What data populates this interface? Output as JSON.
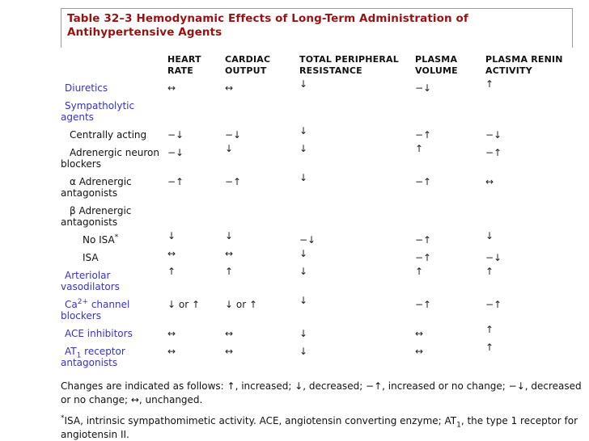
{
  "title": "Table 32–3 Hemodynamic Effects of Long-Term Administration of Antihypertensive Agents",
  "colors": {
    "title": "#991111",
    "link": "#3434bb",
    "border": "#9a9a9a"
  },
  "table": {
    "columns": [
      "HEART RATE",
      "CARDIAC OUTPUT",
      "TOTAL PERIPHERAL RESISTANCE",
      "PLASMA VOLUME",
      "PLASMA RENIN ACTIVITY"
    ],
    "rows": [
      {
        "label": "Diuretics",
        "link": true,
        "indent": 0,
        "cells": [
          "↔",
          "↔",
          "↓",
          "−↓",
          "↑"
        ],
        "raised": [
          false,
          false,
          true,
          false,
          true
        ]
      },
      {
        "label": "Sympatholytic agents",
        "link": true,
        "indent": 0,
        "cells": [
          "",
          "",
          "",
          "",
          ""
        ],
        "raised": [
          false,
          false,
          false,
          false,
          false
        ]
      },
      {
        "label": "Centrally acting",
        "link": false,
        "indent": 1,
        "cells": [
          "−↓",
          "−↓",
          "↓",
          "−↑",
          "−↓"
        ],
        "raised": [
          false,
          false,
          true,
          false,
          false
        ]
      },
      {
        "label": "Adrenergic neuron blockers",
        "link": false,
        "indent": 1,
        "cells": [
          "−↓",
          "↓",
          "↓",
          "↑",
          "−↑"
        ],
        "raised": [
          false,
          true,
          true,
          true,
          false
        ]
      },
      {
        "label": "α Adrenergic antagonists",
        "link": false,
        "indent": 1,
        "cells": [
          "−↑",
          "−↑",
          "↓",
          "−↑",
          "↔"
        ],
        "raised": [
          false,
          false,
          true,
          false,
          false
        ]
      },
      {
        "label": "β Adrenergic antagonists",
        "link": false,
        "indent": 1,
        "cells": [
          "",
          "",
          "",
          "",
          ""
        ],
        "raised": [
          false,
          false,
          false,
          false,
          false
        ]
      },
      {
        "label": "No ISA^{*}",
        "link": false,
        "indent": 2,
        "cells": [
          "↓",
          "↓",
          "−↓",
          "−↑",
          "↓"
        ],
        "raised": [
          true,
          true,
          false,
          false,
          true
        ]
      },
      {
        "label": "ISA",
        "link": false,
        "indent": 2,
        "cells": [
          "↔",
          "↔",
          "↓",
          "−↑",
          "−↓"
        ],
        "raised": [
          true,
          true,
          true,
          false,
          false
        ]
      },
      {
        "label": "Arteriolar vasodilators",
        "link": true,
        "indent": 0,
        "cells": [
          "↑",
          "↑",
          "↓",
          "↑",
          "↑"
        ],
        "raised": [
          true,
          true,
          true,
          true,
          true
        ]
      },
      {
        "label": "Ca^{2+} channel blockers",
        "link": true,
        "indent": 0,
        "cells": [
          "↓ or ↑",
          "↓ or ↑",
          "↓",
          "−↑",
          "−↑"
        ],
        "raised": [
          false,
          false,
          true,
          false,
          false
        ]
      },
      {
        "label": "ACE inhibitors",
        "link": true,
        "indent": 0,
        "cells": [
          "↔",
          "↔",
          "↓",
          "↔",
          "↑"
        ],
        "raised": [
          false,
          false,
          false,
          false,
          true
        ]
      },
      {
        "label": "AT_{1} receptor antagonists",
        "link": true,
        "indent": 0,
        "cells": [
          "↔",
          "↔",
          "↓",
          "↔",
          "↑"
        ],
        "raised": [
          false,
          false,
          false,
          false,
          true
        ]
      }
    ]
  },
  "footnotes": [
    "Changes are indicated as follows: ↑, increased; ↓, decreased; −↑, increased or no change; −↓, decreased or no change; ↔, unchanged.",
    "^{*}ISA, intrinsic sympathomimetic activity. ACE, angiotensin converting enzyme; AT_{1}, the type 1 receptor for angiotensin II."
  ]
}
